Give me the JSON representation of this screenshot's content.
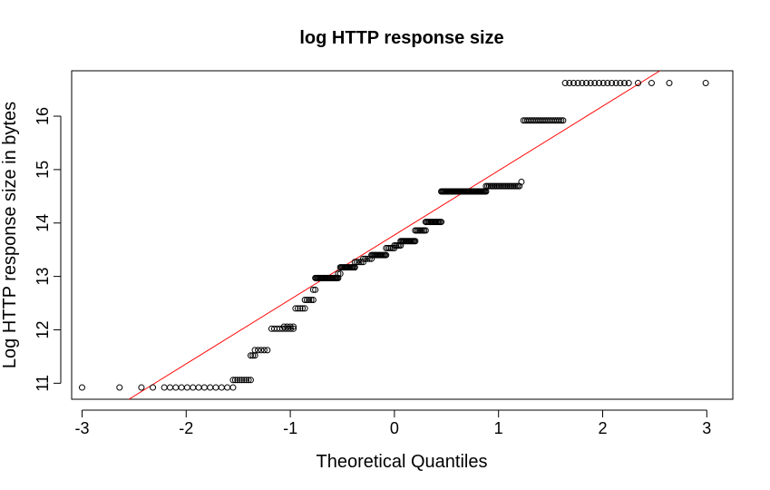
{
  "chart_data": {
    "type": "scatter",
    "title": "log HTTP response size",
    "xlabel": "Theoretical Quantiles",
    "ylabel": "Log HTTP response size in bytes",
    "xlim": [
      -3.1,
      3.25
    ],
    "ylim": [
      10.7,
      16.85
    ],
    "xticks": [
      "-3",
      "-2",
      "-1",
      "0",
      "1",
      "2",
      "3"
    ],
    "yticks": [
      "11",
      "12",
      "13",
      "14",
      "15",
      "16"
    ],
    "grid": false,
    "reference_line": {
      "color": "#ff0000",
      "points": [
        [
          -2.55,
          10.7
        ],
        [
          2.55,
          16.85
        ]
      ]
    },
    "point_groups": [
      {
        "x_from": -3.0,
        "x_to": -3.0,
        "n": 1,
        "y": 10.92
      },
      {
        "x_from": -2.64,
        "x_to": -2.64,
        "n": 1,
        "y": 10.92
      },
      {
        "x_from": -2.43,
        "x_to": -2.43,
        "n": 1,
        "y": 10.92
      },
      {
        "x_from": -2.32,
        "x_to": -2.32,
        "n": 1,
        "y": 10.92
      },
      {
        "x_from": -2.21,
        "x_to": -1.55,
        "n": 13,
        "y": 10.92
      },
      {
        "x_from": -1.55,
        "x_to": -1.38,
        "n": 9,
        "y": 11.06
      },
      {
        "x_from": -1.38,
        "x_to": -1.34,
        "n": 3,
        "y": 11.52
      },
      {
        "x_from": -1.34,
        "x_to": -1.22,
        "n": 5,
        "y": 11.62
      },
      {
        "x_from": -1.18,
        "x_to": -0.97,
        "n": 9,
        "y": 12.02
      },
      {
        "x_from": -1.06,
        "x_to": -0.97,
        "n": 4,
        "y": 12.06
      },
      {
        "x_from": -0.95,
        "x_to": -0.86,
        "n": 5,
        "y": 12.4
      },
      {
        "x_from": -0.86,
        "x_to": -0.78,
        "n": 5,
        "y": 12.56
      },
      {
        "x_from": -0.78,
        "x_to": -0.76,
        "n": 2,
        "y": 12.75
      },
      {
        "x_from": -0.76,
        "x_to": -0.54,
        "n": 24,
        "y": 12.97
      },
      {
        "x_from": -0.54,
        "x_to": -0.52,
        "n": 2,
        "y": 13.05
      },
      {
        "x_from": -0.52,
        "x_to": -0.38,
        "n": 14,
        "y": 13.17
      },
      {
        "x_from": -0.38,
        "x_to": -0.3,
        "n": 5,
        "y": 13.27
      },
      {
        "x_from": -0.3,
        "x_to": -0.22,
        "n": 5,
        "y": 13.33
      },
      {
        "x_from": -0.22,
        "x_to": -0.08,
        "n": 14,
        "y": 13.4
      },
      {
        "x_from": -0.08,
        "x_to": 0.0,
        "n": 6,
        "y": 13.53
      },
      {
        "x_from": 0.0,
        "x_to": 0.06,
        "n": 5,
        "y": 13.58
      },
      {
        "x_from": 0.06,
        "x_to": 0.2,
        "n": 14,
        "y": 13.66
      },
      {
        "x_from": 0.2,
        "x_to": 0.3,
        "n": 8,
        "y": 13.86
      },
      {
        "x_from": 0.3,
        "x_to": 0.45,
        "n": 14,
        "y": 14.02
      },
      {
        "x_from": 0.45,
        "x_to": 0.88,
        "n": 48,
        "y": 14.59
      },
      {
        "x_from": 0.88,
        "x_to": 1.2,
        "n": 22,
        "y": 14.69
      },
      {
        "x_from": 1.22,
        "x_to": 1.22,
        "n": 1,
        "y": 14.77
      },
      {
        "x_from": 1.24,
        "x_to": 1.62,
        "n": 22,
        "y": 15.92
      },
      {
        "x_from": 1.64,
        "x_to": 2.25,
        "n": 16,
        "y": 16.62
      },
      {
        "x_from": 2.34,
        "x_to": 2.34,
        "n": 1,
        "y": 16.62
      },
      {
        "x_from": 2.47,
        "x_to": 2.47,
        "n": 1,
        "y": 16.62
      },
      {
        "x_from": 2.64,
        "x_to": 2.64,
        "n": 1,
        "y": 16.62
      },
      {
        "x_from": 2.99,
        "x_to": 2.99,
        "n": 1,
        "y": 16.62
      }
    ]
  }
}
